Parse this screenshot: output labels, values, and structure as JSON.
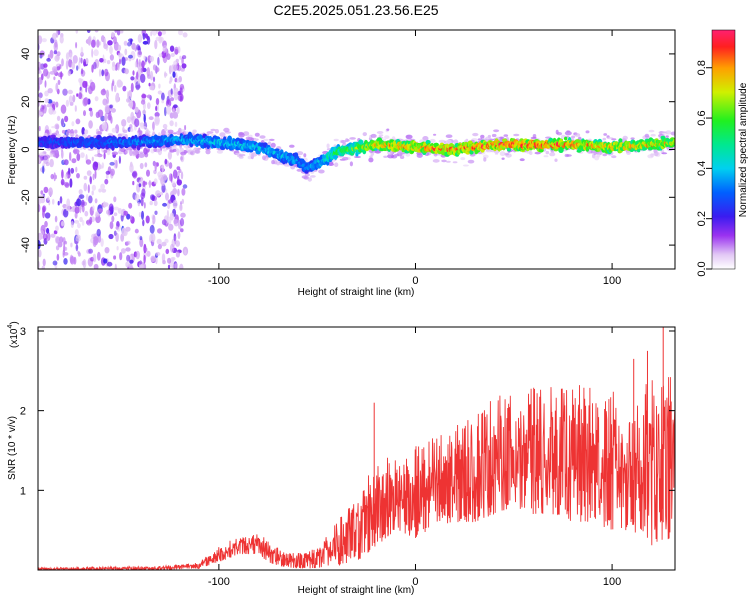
{
  "page": {
    "title": "C2E5.2025.051.23.56.E25"
  },
  "chart_data": [
    {
      "type": "heatmap",
      "title": "C2E5.2025.051.23.56.E25",
      "xlabel": "Height of straight line (km)",
      "ylabel": "Frequency (Hz)",
      "xlim": [
        -192,
        132
      ],
      "ylim": [
        -50,
        50
      ],
      "xticks": [
        -100,
        0,
        100
      ],
      "xtick_labels": [
        "-100",
        "0",
        "100"
      ],
      "yticks": [
        -40,
        -20,
        0,
        20,
        40
      ],
      "ytick_labels": [
        "-40",
        "-20",
        "0",
        "20",
        "40"
      ],
      "colorbar": {
        "label": "Normalized spectral amplitude",
        "range": [
          0,
          0.95
        ],
        "ticks": [
          0.0,
          0.2,
          0.4,
          0.6,
          0.8
        ],
        "tick_labels": [
          "0.0",
          "0.2",
          "0.4",
          "0.6",
          "0.8"
        ],
        "colormap": "white-purple-blue-cyan-green-yellow-red-magenta"
      },
      "ridge": {
        "description_points_x": [
          -192,
          -150,
          -120,
          -100,
          -80,
          -60,
          -55,
          -40,
          -20,
          0,
          20,
          40,
          60,
          80,
          100,
          120,
          132
        ],
        "center_freq_hz": [
          3,
          3,
          4,
          3,
          1,
          -5,
          -8,
          -1,
          2,
          1,
          0,
          2,
          2,
          2,
          1,
          2,
          3
        ],
        "peak_amplitude": [
          0.3,
          0.35,
          0.4,
          0.45,
          0.45,
          0.4,
          0.35,
          0.6,
          0.8,
          0.9,
          0.9,
          0.95,
          0.95,
          0.9,
          0.85,
          0.85,
          0.75
        ]
      },
      "noise_region_x": [
        -192,
        -125
      ]
    },
    {
      "type": "line",
      "title": "",
      "xlabel": "Height of straight line (km)",
      "ylabel": "SNR (10 * v/v)",
      "y_multiplier_label": "(x10",
      "y_multiplier_exponent": "4",
      "xlim": [
        -192,
        132
      ],
      "ylim": [
        0,
        3.05
      ],
      "xticks": [
        -100,
        0,
        100
      ],
      "xtick_labels": [
        "-100",
        "0",
        "100"
      ],
      "yticks": [
        1,
        2,
        3
      ],
      "ytick_labels": [
        "1",
        "2",
        "3"
      ],
      "series": [
        {
          "color": "#ee3333",
          "envelope_x": [
            -192,
            -160,
            -130,
            -110,
            -100,
            -90,
            -80,
            -75,
            -70,
            -60,
            -50,
            -40,
            -30,
            -20,
            -10,
            0,
            10,
            20,
            30,
            40,
            50,
            60,
            70,
            80,
            90,
            100,
            110,
            120,
            132
          ],
          "envelope_min": [
            0.0,
            0.0,
            0.0,
            0.02,
            0.1,
            0.2,
            0.2,
            0.1,
            0.05,
            0.02,
            0.02,
            0.05,
            0.1,
            0.3,
            0.5,
            0.4,
            0.5,
            0.6,
            0.6,
            0.7,
            0.8,
            0.7,
            0.7,
            0.6,
            0.6,
            0.5,
            0.5,
            0.3,
            0.4
          ],
          "envelope_max": [
            0.03,
            0.04,
            0.05,
            0.1,
            0.3,
            0.42,
            0.45,
            0.4,
            0.28,
            0.22,
            0.3,
            0.6,
            0.95,
            1.45,
            1.4,
            1.55,
            1.7,
            1.8,
            2.0,
            2.2,
            2.2,
            2.3,
            2.3,
            2.35,
            2.3,
            2.25,
            2.2,
            2.4,
            2.5
          ],
          "spikes": [
            {
              "x": -21,
              "y": 2.1
            },
            {
              "x": 126,
              "y": 3.05
            },
            {
              "x": 111,
              "y": 2.65
            },
            {
              "x": 118,
              "y": 2.75
            }
          ]
        }
      ]
    }
  ]
}
